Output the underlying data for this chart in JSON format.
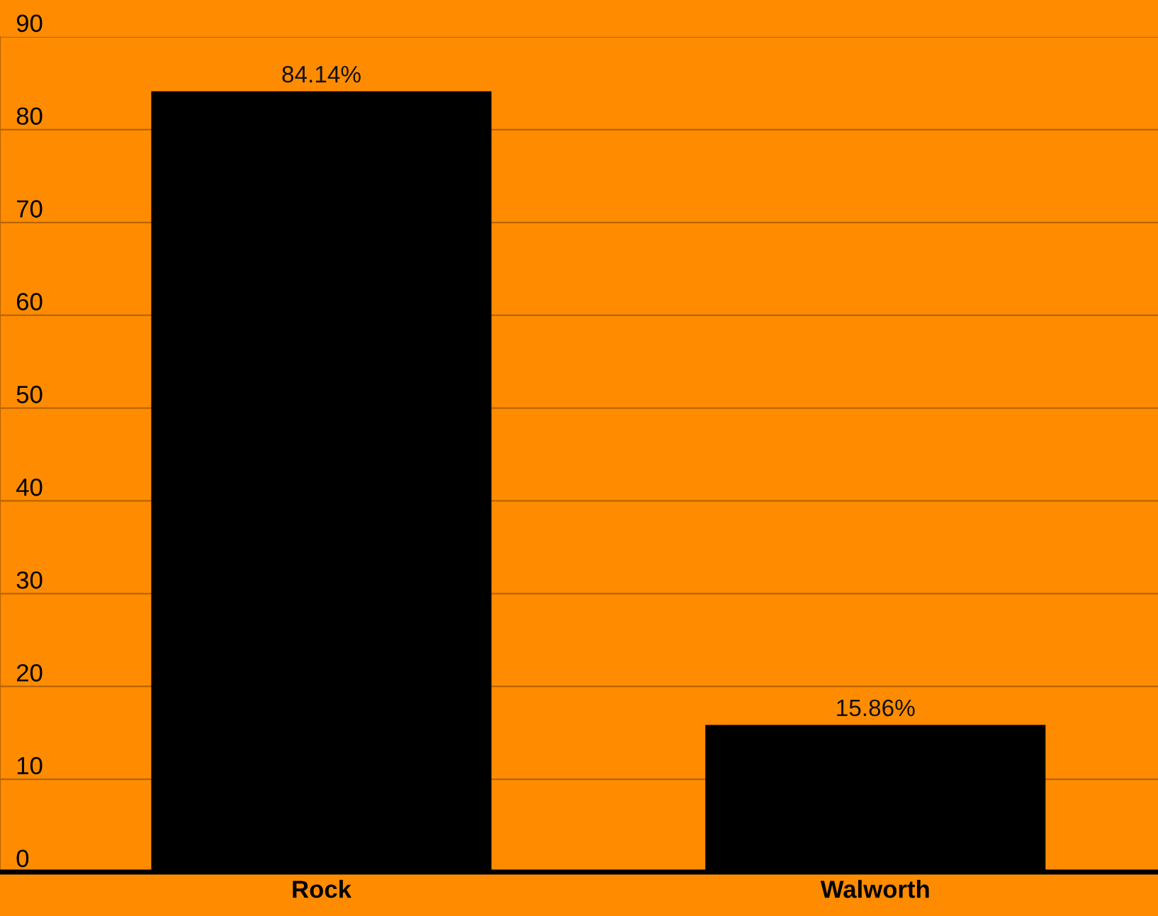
{
  "chart_data": {
    "type": "bar",
    "categories": [
      "Rock",
      "Walworth"
    ],
    "values": [
      84.14,
      15.86
    ],
    "value_labels": [
      "84.14%",
      "15.86%"
    ],
    "color": "#000000",
    "ylim": [
      0,
      90
    ],
    "yticks": [
      0,
      10,
      20,
      30,
      40,
      50,
      60,
      70,
      80,
      90
    ],
    "grid": "y"
  }
}
